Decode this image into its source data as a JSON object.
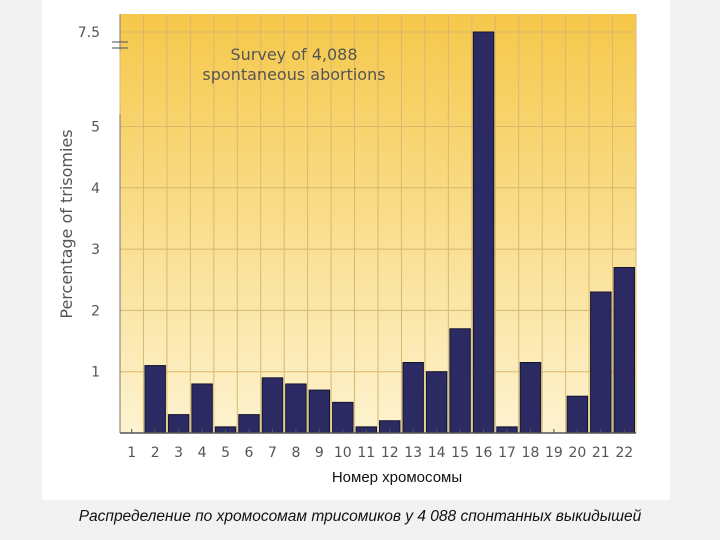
{
  "chart_data": {
    "type": "bar",
    "title": "Survey of 4,088 spontaneous abortions",
    "title_lines": [
      "Survey of 4,088",
      "spontaneous abortions"
    ],
    "ylabel": "Percentage of trisomies",
    "xlabel": "Номер хромосомы",
    "categories": [
      "1",
      "2",
      "3",
      "4",
      "5",
      "6",
      "7",
      "8",
      "9",
      "10",
      "11",
      "12",
      "13",
      "14",
      "15",
      "16",
      "17",
      "18",
      "19",
      "20",
      "21",
      "22"
    ],
    "values": [
      0,
      1.1,
      0.3,
      0.8,
      0.1,
      0.3,
      0.9,
      0.8,
      0.7,
      0.5,
      0.1,
      0.2,
      1.15,
      1.0,
      1.7,
      7.5,
      0.1,
      1.15,
      0.0,
      0.6,
      2.3,
      2.7
    ],
    "yticks": [
      "1",
      "2",
      "3",
      "4",
      "5",
      "7.5"
    ],
    "ylim": [
      0,
      7.5
    ],
    "axis_break": true,
    "grid": true,
    "colors": {
      "bar": "#2b2a62",
      "bar_stroke": "#14142e",
      "bg_top": "#f6c84a",
      "bg_bottom": "#fdf3d0",
      "grid": "#d8b870"
    }
  },
  "caption": "Распределение по хромосомам трисомиков у 4 088  спонтанных выкидышей"
}
